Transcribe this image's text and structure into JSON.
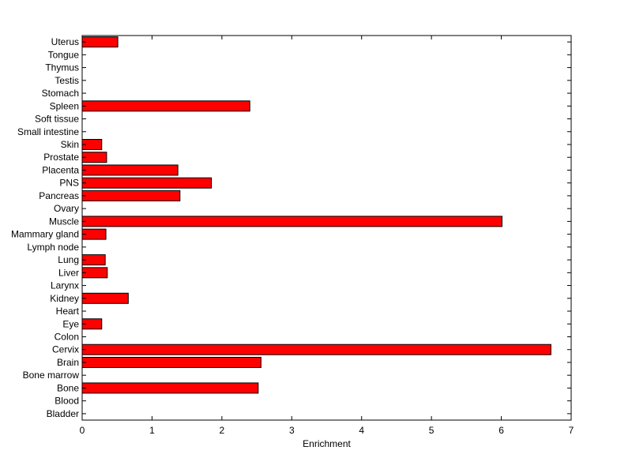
{
  "chart_data": {
    "type": "bar",
    "orientation": "horizontal",
    "title": "",
    "xlabel": "Enrichment",
    "ylabel": "",
    "xlim": [
      0,
      7
    ],
    "xticks": [
      0,
      1,
      2,
      3,
      4,
      5,
      6,
      7
    ],
    "grid": false,
    "bar_color": "#ff0000",
    "bar_edge_color": "#000000",
    "categories": [
      "Bladder",
      "Blood",
      "Bone",
      "Bone marrow",
      "Brain",
      "Cervix",
      "Colon",
      "Eye",
      "Heart",
      "Kidney",
      "Larynx",
      "Liver",
      "Lung",
      "Lymph node",
      "Mammary gland",
      "Muscle",
      "Ovary",
      "Pancreas",
      "PNS",
      "Placenta",
      "Prostate",
      "Skin",
      "Small intestine",
      "Soft tissue",
      "Spleen",
      "Stomach",
      "Testis",
      "Thymus",
      "Tongue",
      "Uterus"
    ],
    "values": [
      0,
      0,
      2.52,
      0,
      2.56,
      6.71,
      0,
      0.28,
      0,
      0.66,
      0,
      0.36,
      0.33,
      0,
      0.34,
      6.01,
      0,
      1.4,
      1.85,
      1.37,
      0.35,
      0.28,
      0,
      0,
      2.4,
      0,
      0,
      0,
      0,
      0.51
    ]
  }
}
